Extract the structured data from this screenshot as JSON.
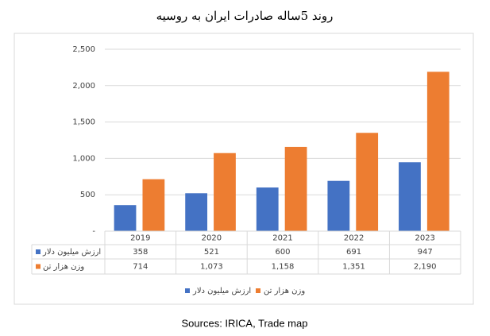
{
  "chart_data": {
    "type": "bar",
    "title": "روند 5ساله صادرات ایران به روسیه",
    "categories": [
      "2019",
      "2020",
      "2021",
      "2022",
      "2023"
    ],
    "series": [
      {
        "name": "ارزش میلیون دلار",
        "color": "#4472c4",
        "values": [
          358,
          521,
          600,
          691,
          947
        ]
      },
      {
        "name": "وزن هزار تن",
        "color": "#ed7d31",
        "values": [
          714,
          1073,
          1158,
          1351,
          2190
        ],
        "value_labels": [
          "714",
          "1,073",
          "1,158",
          "1,351",
          "2,190"
        ]
      }
    ],
    "ylim": [
      0,
      2500
    ],
    "yticks": [
      {
        "value": 0,
        "label": "-"
      },
      500,
      {
        "value": 1000,
        "label": "1,000"
      },
      {
        "value": 1500,
        "label": "1,500"
      },
      {
        "value": 2000,
        "label": "2,000"
      },
      {
        "value": 2500,
        "label": "2,500"
      }
    ],
    "grid": true,
    "data_table": true,
    "source": "Sources: IRICA, Trade map"
  }
}
